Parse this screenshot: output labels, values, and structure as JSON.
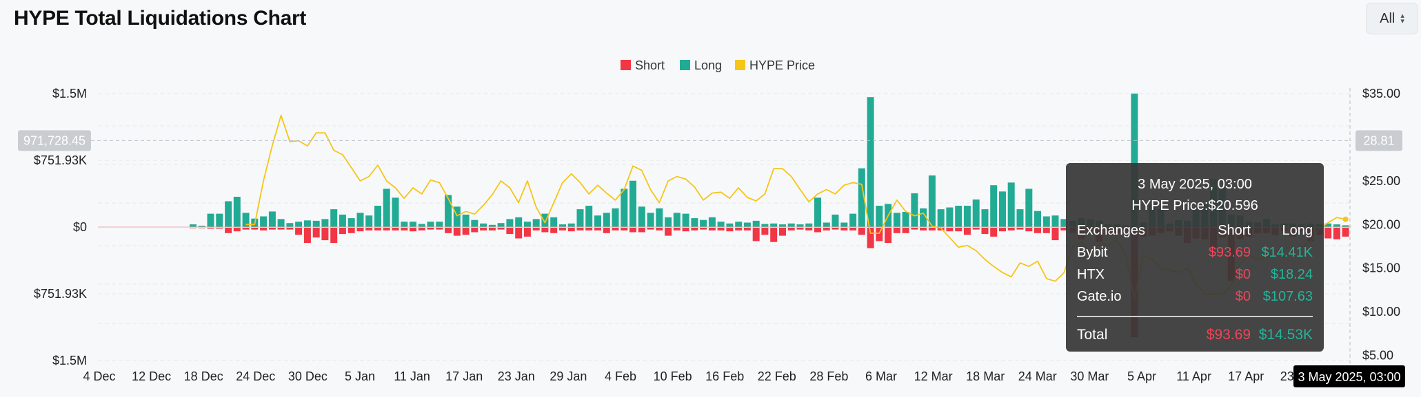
{
  "title": "HYPE Total Liquidations Chart",
  "range_select": {
    "value": "All"
  },
  "chart_data": {
    "type": "bar",
    "legend": [
      "Short",
      "Long",
      "HYPE Price"
    ],
    "legend_placement": "top-center",
    "colors": {
      "short": "#f23645",
      "long": "#22ab94",
      "price": "#f5c518"
    },
    "x_tick_labels": [
      "4 Dec",
      "12 Dec",
      "18 Dec",
      "24 Dec",
      "30 Dec",
      "5 Jan",
      "11 Jan",
      "17 Jan",
      "23 Jan",
      "29 Jan",
      "4 Feb",
      "10 Feb",
      "16 Feb",
      "22 Feb",
      "28 Feb",
      "6 Mar",
      "12 Mar",
      "18 Mar",
      "24 Mar",
      "30 Mar",
      "5 Apr",
      "11 Apr",
      "17 Apr",
      "23 Apr"
    ],
    "y_left_tick_labels": [
      "$1.5M",
      "$751.93K",
      "$0",
      "$751.93K",
      "$1.5M"
    ],
    "y_left_range": [
      -1500000,
      1500000
    ],
    "y_right_tick_labels": [
      "$35.00",
      "$30.00",
      "$25.00",
      "$20.00",
      "$15.00",
      "$10.00",
      "$5.00"
    ],
    "y_right_range": [
      0,
      35
    ],
    "crosshair": {
      "left_value": "971,728.45",
      "right_value": "28.81",
      "x_label": "3 May 2025, 03:00"
    },
    "grid": true,
    "long_values": [
      0,
      0,
      0,
      0,
      0,
      0,
      0,
      0,
      0,
      0,
      30000,
      15000,
      150000,
      150000,
      290000,
      340000,
      160000,
      95000,
      120000,
      175000,
      90000,
      45000,
      60000,
      75000,
      70000,
      90000,
      200000,
      140000,
      100000,
      160000,
      130000,
      240000,
      430000,
      330000,
      60000,
      60000,
      35000,
      60000,
      60000,
      360000,
      230000,
      140000,
      80000,
      40000,
      25000,
      45000,
      90000,
      110000,
      60000,
      90000,
      150000,
      110000,
      30000,
      40000,
      200000,
      240000,
      130000,
      160000,
      210000,
      430000,
      520000,
      230000,
      160000,
      210000,
      110000,
      160000,
      150000,
      100000,
      80000,
      110000,
      60000,
      40000,
      60000,
      50000,
      70000,
      35000,
      40000,
      30000,
      40000,
      30000,
      40000,
      330000,
      50000,
      140000,
      50000,
      150000,
      660000,
      1460000,
      240000,
      260000,
      160000,
      170000,
      380000,
      210000,
      580000,
      200000,
      220000,
      240000,
      240000,
      310000,
      200000,
      470000,
      400000,
      500000,
      200000,
      430000,
      180000,
      120000,
      130000,
      90000,
      70000,
      100000,
      90000,
      70000,
      30000,
      30000,
      20000,
      1500000,
      50000,
      250000,
      200000,
      40000,
      80000,
      70000,
      220000,
      260000,
      540000,
      440000,
      140000,
      130000,
      60000,
      50000,
      90000,
      30000,
      40000,
      40000,
      30000,
      40000,
      30000,
      40000,
      30000,
      20000
    ],
    "short_values": [
      0,
      0,
      0,
      0,
      0,
      0,
      0,
      0,
      0,
      0,
      5000,
      5000,
      10000,
      10000,
      60000,
      40000,
      20000,
      20000,
      30000,
      20000,
      20000,
      20000,
      80000,
      170000,
      110000,
      140000,
      170000,
      70000,
      60000,
      40000,
      30000,
      30000,
      30000,
      30000,
      30000,
      40000,
      30000,
      20000,
      20000,
      60000,
      90000,
      80000,
      50000,
      30000,
      30000,
      20000,
      70000,
      120000,
      100000,
      30000,
      50000,
      60000,
      30000,
      40000,
      30000,
      30000,
      30000,
      60000,
      30000,
      30000,
      50000,
      50000,
      20000,
      30000,
      90000,
      30000,
      40000,
      30000,
      20000,
      30000,
      30000,
      40000,
      30000,
      30000,
      150000,
      80000,
      160000,
      90000,
      30000,
      20000,
      30000,
      50000,
      30000,
      20000,
      30000,
      30000,
      80000,
      230000,
      150000,
      170000,
      60000,
      60000,
      20000,
      30000,
      30000,
      30000,
      40000,
      40000,
      80000,
      20000,
      70000,
      100000,
      40000,
      30000,
      20000,
      40000,
      60000,
      60000,
      140000,
      30000,
      60000,
      130000,
      40000,
      160000,
      80000,
      60000,
      40000,
      1230000,
      100000,
      90000,
      60000,
      40000,
      90000,
      170000,
      120000,
      130000,
      220000,
      110000,
      600000,
      130000,
      100000,
      60000,
      60000,
      80000,
      40000,
      100000,
      40000,
      150000,
      80000,
      120000,
      130000,
      100000
    ],
    "price_values": [
      null,
      null,
      null,
      null,
      null,
      null,
      null,
      null,
      null,
      null,
      null,
      null,
      null,
      null,
      null,
      null,
      20000,
      20000,
      25000,
      29000,
      32500,
      29500,
      29600,
      29000,
      30500,
      30500,
      28500,
      28000,
      26500,
      25000,
      25500,
      26800,
      25000,
      24200,
      23000,
      24200,
      23500,
      25100,
      24800,
      23000,
      21000,
      21500,
      21200,
      22200,
      23400,
      25000,
      24200,
      22500,
      25000,
      22000,
      20200,
      22500,
      24800,
      25800,
      24800,
      23500,
      24500,
      23600,
      22800,
      24000,
      26700,
      26200,
      24000,
      22500,
      25000,
      25500,
      25200,
      24300,
      22800,
      23600,
      23700,
      23000,
      24200,
      23100,
      22700,
      23500,
      26400,
      26400,
      25500,
      24000,
      22600,
      23500,
      24000,
      23500,
      24500,
      24800,
      24600,
      19000,
      19000,
      21000,
      22800,
      21500,
      21000,
      21300,
      19800,
      19600,
      18500,
      17400,
      17600,
      17000,
      16000,
      15200,
      14500,
      14000,
      15600,
      15200,
      15800,
      13800,
      13500,
      14500,
      17500,
      18000,
      16800,
      17800,
      17700,
      18200,
      16500,
      11500,
      16500,
      16000,
      15000,
      14800,
      14500,
      15000,
      13200,
      12000,
      12000,
      12000,
      13000,
      15500,
      16500,
      16000,
      16200,
      17000,
      16200,
      17000,
      17500,
      18000,
      19500,
      20200,
      20800,
      20596
    ]
  },
  "tooltip": {
    "date": "3 May 2025, 03:00",
    "price_label": "HYPE Price:$20.596",
    "headers": {
      "exchange": "Exchanges",
      "short": "Short",
      "long": "Long"
    },
    "rows": [
      {
        "exchange": "Bybit",
        "short": "$93.69",
        "long": "$14.41K"
      },
      {
        "exchange": "HTX",
        "short": "$0",
        "long": "$18.24"
      },
      {
        "exchange": "Gate.io",
        "short": "$0",
        "long": "$107.63"
      }
    ],
    "total": {
      "label": "Total",
      "short": "$93.69",
      "long": "$14.53K"
    }
  }
}
